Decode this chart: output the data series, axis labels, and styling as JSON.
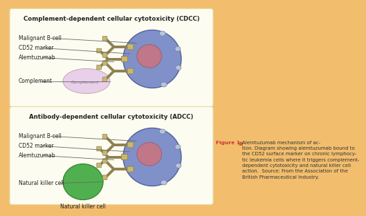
{
  "background_color": "#F2BE6E",
  "panel_bg": "#FDFCF0",
  "panel_edge": "#E8D8A0",
  "panel1_title": "Complement-dependent cellular cytotoxicity (CDCC)",
  "panel2_title": "Antibody-dependent cellular cytotoxicity (ADCC)",
  "panel1_labels": [
    "Malignant B-cell",
    "CD52 marker",
    "Alemtuzumab",
    "Complement"
  ],
  "panel2_labels": [
    "Malignant B-cell",
    "CD52 marker",
    "Alemtuzumab",
    "Natural killer cell"
  ],
  "cell_color": "#8090C8",
  "cell_edge_color": "#5060A0",
  "cell_inner_color": "#C07888",
  "cell_inner_edge": "#A05868",
  "knob_color": "#B8C4DC",
  "knob_edge": "#7080A8",
  "antibody_color": "#C8B870",
  "antibody_dark": "#908050",
  "complement_color": "#E8D0E8",
  "complement_edge": "#C8A0C0",
  "nk_color": "#50B050",
  "nk_edge": "#308030",
  "label_color": "#222222",
  "line_color": "#666666",
  "title_color": "#222222",
  "fig_label_bold": "Figure 1",
  "fig_label_color": "#CC3333",
  "fig_square_color": "#CC6633",
  "caption_body": "Alemtuzumab mechanism of action. Diagram showing alemtuzumab bound to the CD52 surface marker on chronic lymphocytic leukemia cells where it triggers complement-dependent cytotoxicity and natural killer cell action. Source: From the Association of the British Pharmaceutical Industry.",
  "label_fontsize": 5.5,
  "title_fontsize": 6.2,
  "caption_fontsize": 5.0
}
